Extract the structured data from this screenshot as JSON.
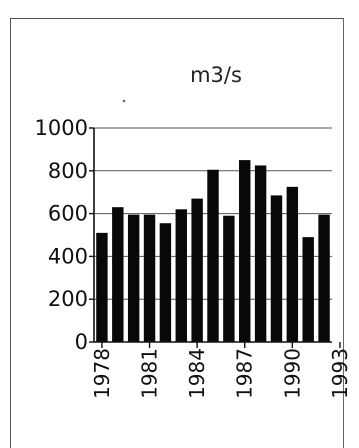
{
  "chart_data": {
    "type": "bar",
    "title": "m3/s",
    "xlabel": "",
    "ylabel": "",
    "ylim": [
      0,
      1000
    ],
    "yticks": [
      0,
      200,
      400,
      600,
      800,
      1000
    ],
    "yticks_labels": [
      "0",
      "200",
      "400",
      "600",
      "800",
      "1000"
    ],
    "grid": true,
    "legend": "none",
    "bar_color": "#080808",
    "categories": [
      "1978",
      "1979",
      "1980",
      "1981",
      "1982",
      "1983",
      "1984",
      "1985",
      "1986",
      "1987",
      "1988",
      "1989",
      "1990",
      "1991",
      "1992"
    ],
    "values": [
      510,
      630,
      595,
      595,
      555,
      620,
      670,
      805,
      590,
      850,
      825,
      685,
      725,
      490,
      595
    ],
    "xtick_labels": [
      "1978",
      "1981",
      "1984",
      "1987",
      "1990",
      "1993"
    ]
  }
}
